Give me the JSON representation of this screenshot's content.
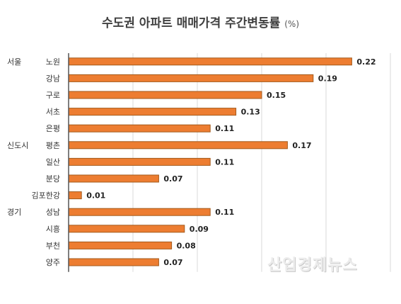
{
  "chart_data": {
    "type": "bar",
    "orientation": "horizontal",
    "title": "수도권 아파트 매매가격 주간변동률",
    "title_unit": "(%)",
    "groups": [
      {
        "name": "서울",
        "start_index": 0
      },
      {
        "name": "신도시",
        "start_index": 5
      },
      {
        "name": "경기",
        "start_index": 9
      }
    ],
    "categories": [
      "노원",
      "강남",
      "구로",
      "서초",
      "은평",
      "평촌",
      "일산",
      "분당",
      "김포한강",
      "성남",
      "시흥",
      "부천",
      "양주"
    ],
    "values": [
      0.22,
      0.19,
      0.15,
      0.13,
      0.11,
      0.17,
      0.11,
      0.07,
      0.01,
      0.11,
      0.09,
      0.08,
      0.07
    ],
    "value_labels": [
      "0.22",
      "0.19",
      "0.15",
      "0.13",
      "0.11",
      "0.17",
      "0.11",
      "0.07",
      "0.01",
      "0.11",
      "0.09",
      "0.08",
      "0.07"
    ],
    "xlim": [
      0,
      0.25
    ],
    "grid": true,
    "bar_color": "#ed7d31"
  },
  "watermark": "산업경제뉴스"
}
